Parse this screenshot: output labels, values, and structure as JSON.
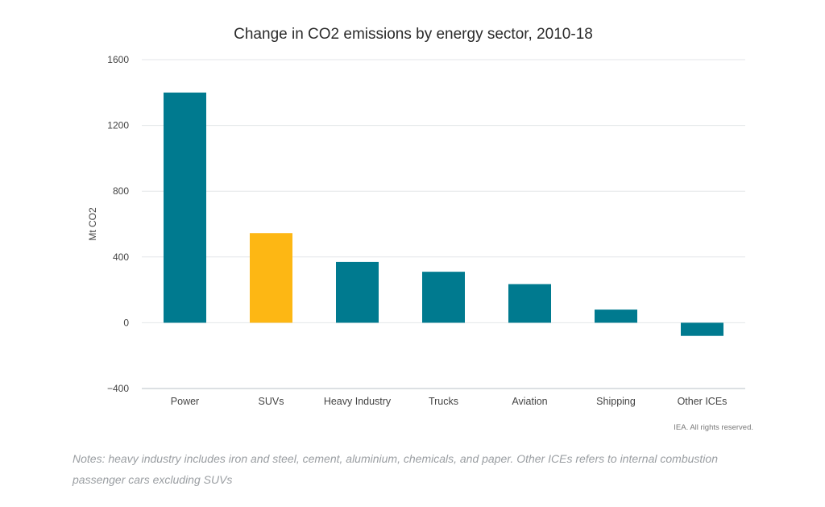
{
  "chart_data": {
    "type": "bar",
    "title": "Change in CO2 emissions by energy sector, 2010-18",
    "xlabel": "",
    "ylabel": "Mt CO2",
    "ylim": [
      -400,
      1600
    ],
    "yticks": [
      1600,
      1200,
      800,
      400,
      0,
      -400
    ],
    "ytick_labels": [
      "1600",
      "1200",
      "800",
      "400",
      "0",
      "−400"
    ],
    "grid": true,
    "categories": [
      "Power",
      "SUVs",
      "Heavy Industry",
      "Trucks",
      "Aviation",
      "Shipping",
      "Other ICEs"
    ],
    "values": [
      1400,
      545,
      370,
      310,
      235,
      80,
      -80
    ],
    "colors": [
      "#007a8f",
      "#fdb714",
      "#007a8f",
      "#007a8f",
      "#007a8f",
      "#007a8f",
      "#007a8f"
    ],
    "highlight_category": "SUVs"
  },
  "credit": "IEA. All rights reserved.",
  "notes": "Notes: heavy industry includes iron and steel, cement, aluminium, chemicals, and paper. Other ICEs refers to internal combustion passenger cars excluding SUVs"
}
